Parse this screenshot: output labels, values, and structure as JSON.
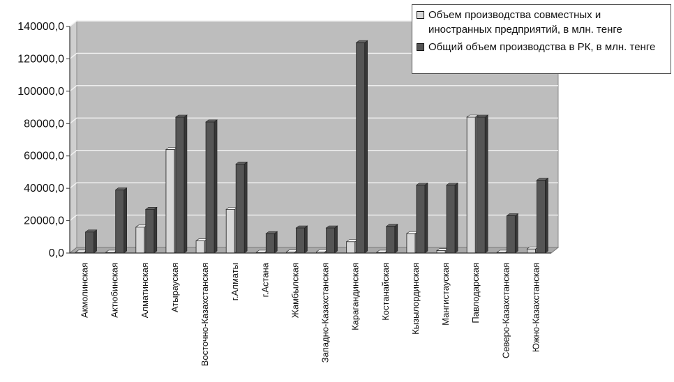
{
  "chart_data": {
    "type": "bar",
    "categories": [
      "Акмолинская",
      "Актюбинская",
      "Алматинская",
      "Атырауская",
      "Восточно-Казахстанская",
      "г.Алматы",
      "г.Астана",
      "Жамбылская",
      "Западно-Казахстанская",
      "Карагандинская",
      "Костанайская",
      "Кызылординская",
      "Мангистауская",
      "Павлодарская",
      "Северо-Казахстанская",
      "Южно-Казахстанская"
    ],
    "series": [
      {
        "name": "Объем производства совместных и иностранных предприятий, в млн. тенге",
        "color": "#d8d8d8",
        "values": [
          500,
          200,
          16000,
          64000,
          7500,
          27000,
          400,
          600,
          700,
          7000,
          300,
          12000,
          1500,
          84000,
          200,
          2500
        ]
      },
      {
        "name": "Общий объем производства в РК,  в млн. тенге",
        "color": "#555555",
        "values": [
          13000,
          39000,
          27000,
          84000,
          81000,
          55000,
          12000,
          15500,
          15500,
          130000,
          16500,
          42000,
          42000,
          84000,
          23000,
          45000
        ]
      }
    ],
    "y_tick_labels": [
      "0,0",
      "20000,0",
      "40000,0",
      "60000,0",
      "80000,0",
      "100000,0",
      "120000,0",
      "140000,0"
    ],
    "ylim": [
      0,
      140000
    ],
    "grid": true,
    "legend_position": "top-right",
    "colors": {
      "plot_background": "#bdbdbd",
      "plot_floor": "#a9a9a9",
      "gridline": "#f2f2f2",
      "axis": "#333333",
      "text": "#111111"
    }
  }
}
